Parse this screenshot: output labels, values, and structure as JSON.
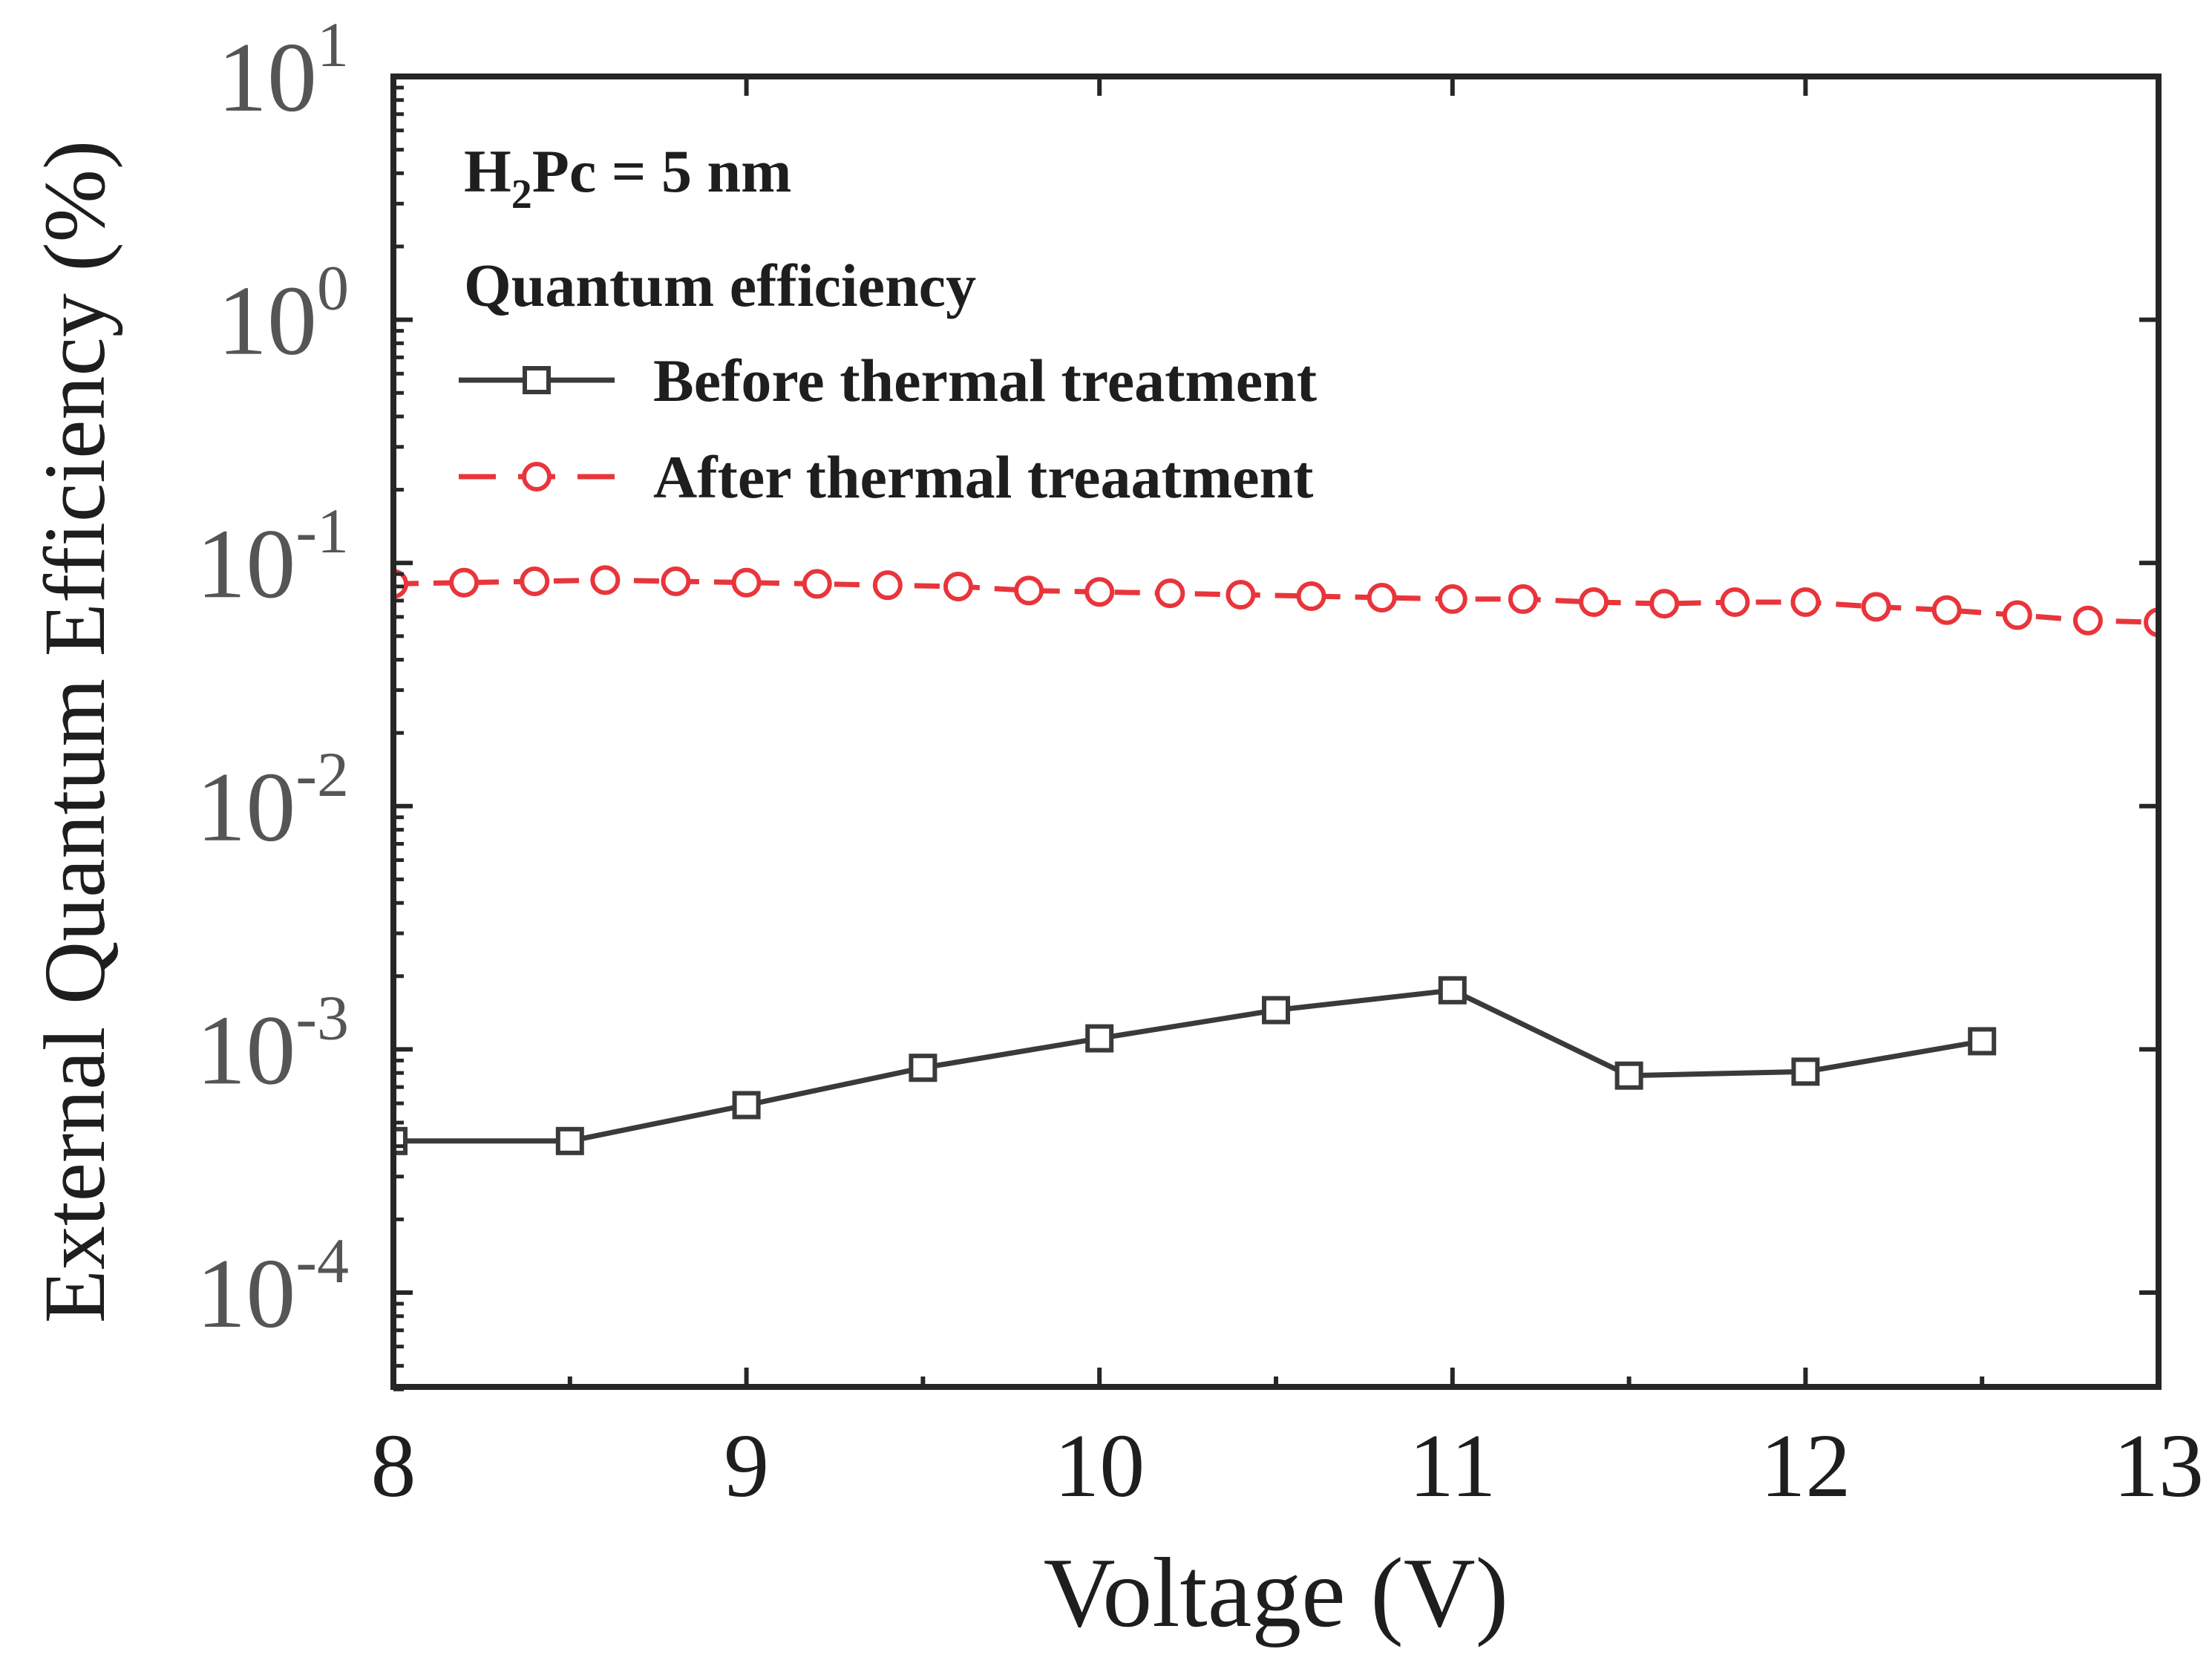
{
  "chart_data": {
    "type": "line",
    "title": "",
    "xlabel": "Voltage (V)",
    "ylabel": "External Quantum Efficiency (%)",
    "xlim": [
      8,
      13
    ],
    "ylim": [
      4e-05,
      10
    ],
    "yscale": "log",
    "grid": false,
    "x_ticks": [
      {
        "value": 8,
        "label": "8"
      },
      {
        "value": 9,
        "label": "9"
      },
      {
        "value": 10,
        "label": "10"
      },
      {
        "value": 11,
        "label": "11"
      },
      {
        "value": 12,
        "label": "12"
      },
      {
        "value": 13,
        "label": "13"
      }
    ],
    "x_minor_ticks": [
      8.5,
      9.5,
      10.5,
      11.5,
      12.5
    ],
    "y_ticks": [
      {
        "value": 10,
        "base": "10",
        "exp": "1"
      },
      {
        "value": 1,
        "base": "10",
        "exp": "0"
      },
      {
        "value": 0.1,
        "base": "10",
        "exp": "-1"
      },
      {
        "value": 0.01,
        "base": "10",
        "exp": "-2"
      },
      {
        "value": 0.001,
        "base": "10",
        "exp": "-3"
      },
      {
        "value": 0.0001,
        "base": "10",
        "exp": "-4"
      }
    ],
    "annotation": {
      "main": "H",
      "sub": "2",
      "rest": "Pc = 5 nm"
    },
    "legend": {
      "title": "Quantum efficiency",
      "placement": "top-left",
      "entries": [
        "Before thermal treatment",
        "After thermal treaatment"
      ]
    },
    "series": [
      {
        "name": "Before thermal treatment",
        "color": "#3a3a3a",
        "marker": "square",
        "line": "solid",
        "x": [
          8,
          8.5,
          9,
          9.5,
          10,
          10.5,
          11,
          11.5,
          12,
          12.5
        ],
        "y": [
          0.00042,
          0.00042,
          0.00059,
          0.00084,
          0.00111,
          0.00145,
          0.00175,
          0.00078,
          0.00081,
          0.00108
        ]
      },
      {
        "name": "After thermal treaatment",
        "color": "#e8353b",
        "marker": "circle",
        "line": "dashed",
        "x": [
          8,
          8.2,
          8.4,
          8.6,
          8.8,
          9,
          9.2,
          9.4,
          9.6,
          9.8,
          10,
          10.2,
          10.4,
          10.6,
          10.8,
          11,
          11.2,
          11.4,
          11.6,
          11.8,
          12,
          12.2,
          12.4,
          12.6,
          12.8,
          13
        ],
        "y": [
          0.082,
          0.083,
          0.084,
          0.085,
          0.084,
          0.083,
          0.082,
          0.081,
          0.08,
          0.077,
          0.076,
          0.075,
          0.074,
          0.073,
          0.072,
          0.071,
          0.071,
          0.069,
          0.068,
          0.069,
          0.069,
          0.066,
          0.064,
          0.061,
          0.058,
          0.057
        ]
      }
    ]
  }
}
